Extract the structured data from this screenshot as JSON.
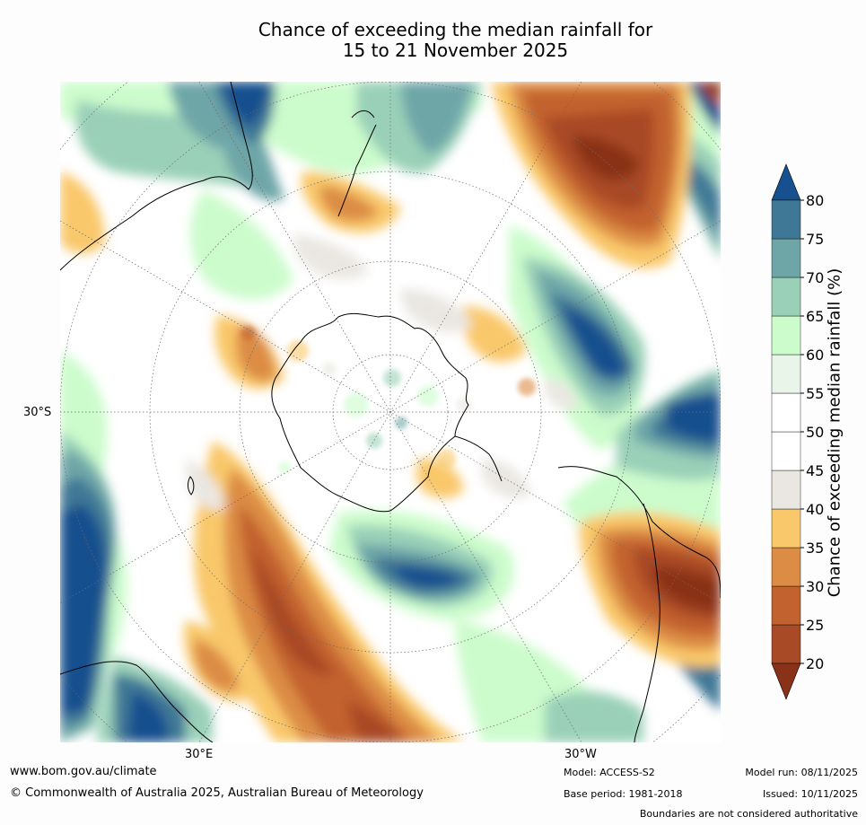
{
  "title": {
    "line1": "Chance of exceeding the median rainfall for",
    "line2": "15 to 21 November 2025"
  },
  "axis_labels": {
    "lat": "30°S",
    "lon_east": "30°E",
    "lon_west": "30°W"
  },
  "colorbar": {
    "label": "Chance of exceeding median rainfall (%)",
    "ticks": [
      "20",
      "25",
      "30",
      "35",
      "40",
      "45",
      "50",
      "55",
      "60",
      "65",
      "70",
      "75",
      "80"
    ],
    "colors": [
      "#8a3218",
      "#a84a26",
      "#c2622f",
      "#dc8c45",
      "#f9c86a",
      "#eae7e2",
      "#ffffff",
      "#ffffff",
      "#eaf5ea",
      "#ccfccc",
      "#9ad0b8",
      "#6ea6a8",
      "#3f7896",
      "#16508e"
    ],
    "under_color": "#8a3218",
    "over_color": "#16508e"
  },
  "footer": {
    "website": "www.bom.gov.au/climate",
    "copyright": "© Commonwealth of Australia 2025, Australian Bureau of Meteorology",
    "model": "Model: ACCESS-S2",
    "base_period": "Base period: 1981-2018",
    "model_run": "Model run: 08/11/2025",
    "issued": "Issued: 10/11/2025",
    "boundaries": "Boundaries are not considered authoritative"
  }
}
